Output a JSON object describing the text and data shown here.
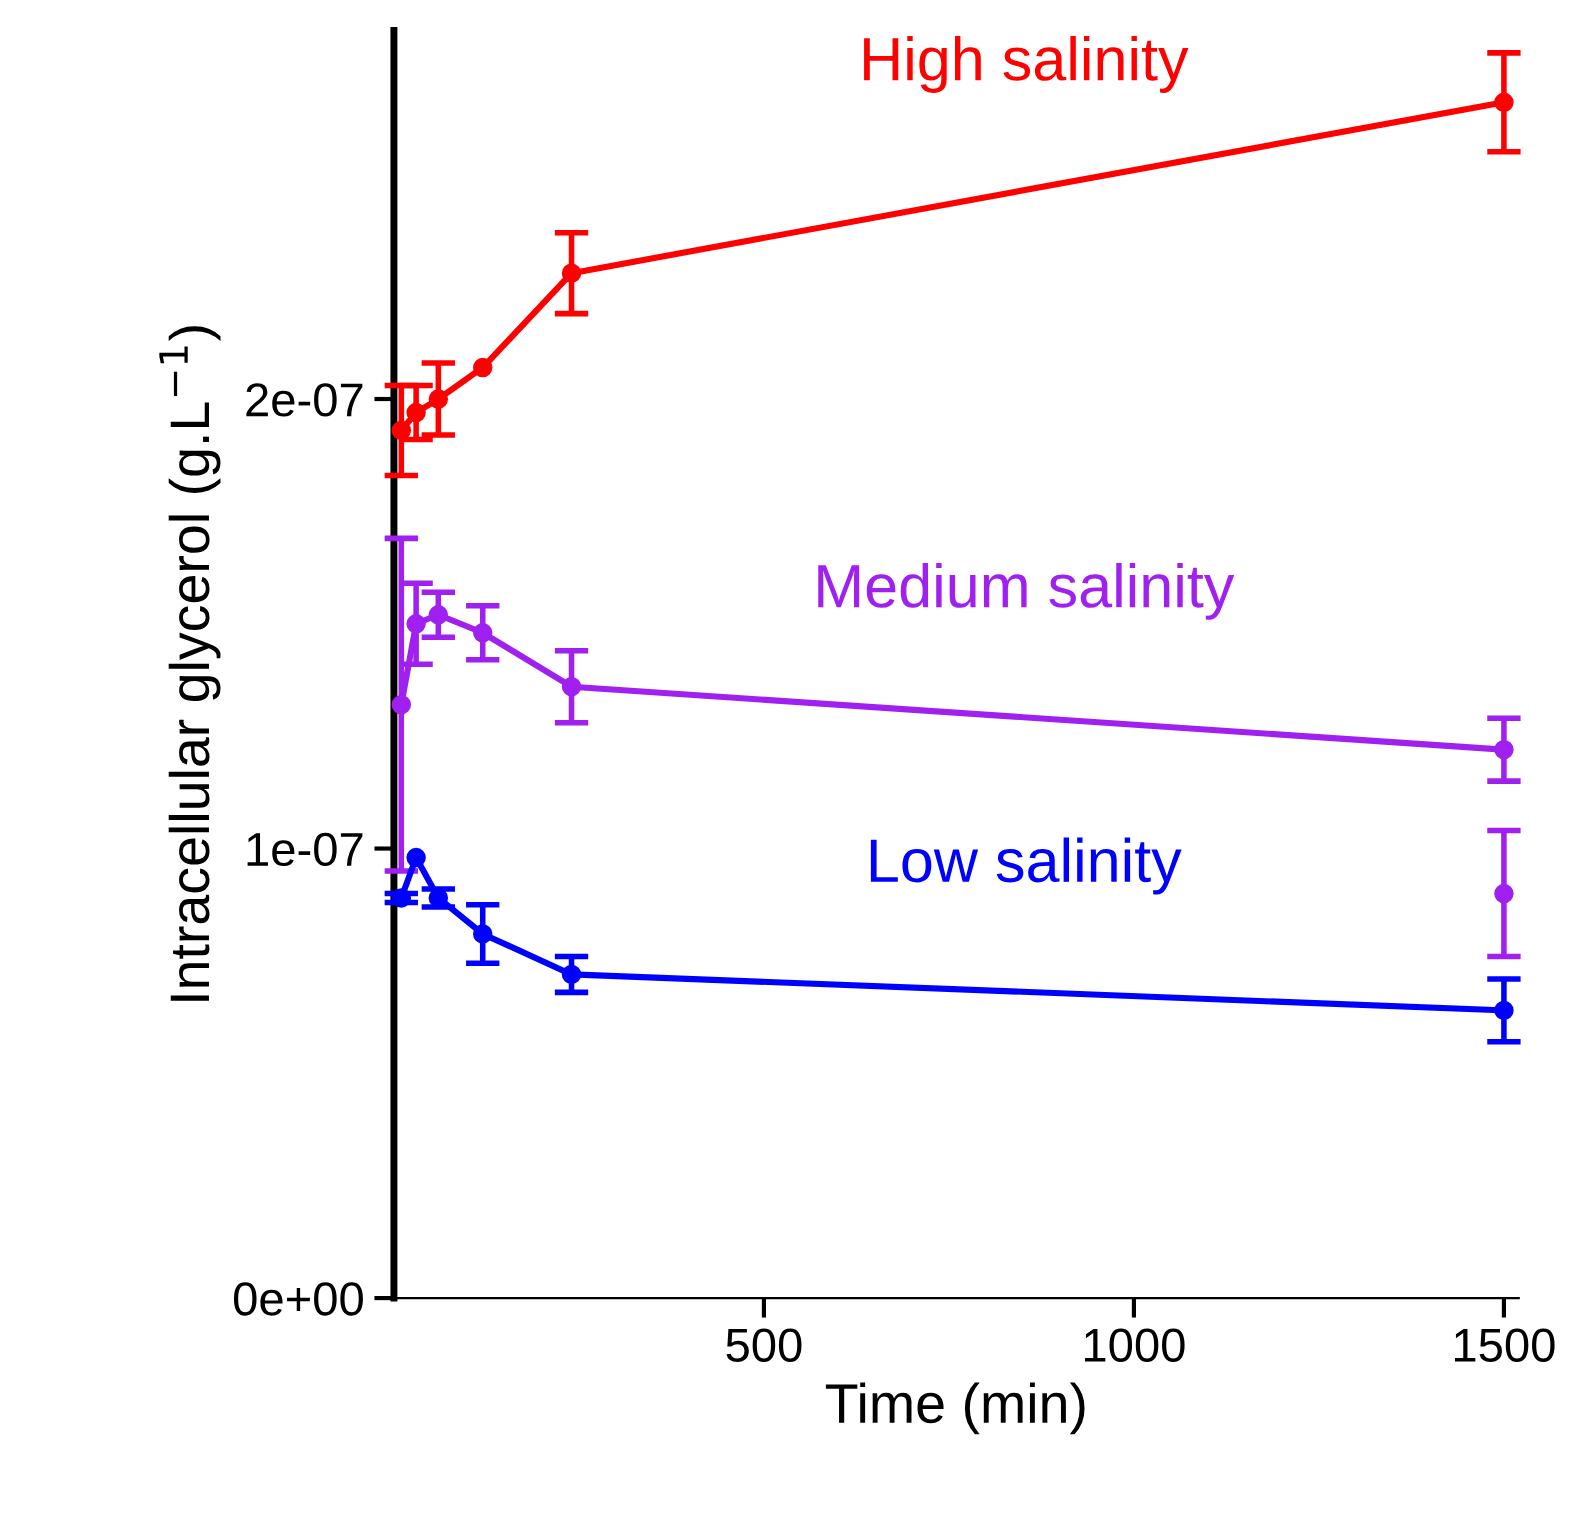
{
  "chart_data": {
    "type": "line",
    "xlabel": "Time (min)",
    "ylabel": "Intracellular glycerol (g.L$^{−1}$)",
    "x": [
      10,
      30,
      60,
      120,
      240,
      1500
    ],
    "series": [
      {
        "name": "High salinity",
        "color": "#ff0000",
        "values": [
          1.93e-07,
          1.97e-07,
          2e-07,
          2.07e-07,
          2.28e-07,
          2.66e-07
        ],
        "errors": [
          1e-08,
          6e-09,
          8e-09,
          null,
          9e-09,
          1.1e-08
        ]
      },
      {
        "name": "Medium salinity",
        "color": "#a020f0",
        "values": [
          1.32e-07,
          1.5e-07,
          1.52e-07,
          1.48e-07,
          1.36e-07,
          1.22e-07
        ],
        "errors": [
          3.7e-08,
          9e-09,
          5e-09,
          6e-09,
          8e-09,
          7e-09
        ]
      },
      {
        "type": "scatter",
        "color": "#a020f0",
        "values": [
          null,
          null,
          null,
          null,
          null,
          9e-08
        ],
        "errors": [
          null,
          null,
          null,
          null,
          null,
          1.4e-08
        ]
      },
      {
        "name": "Low salinity",
        "color": "#0000ff",
        "values": [
          8.9e-08,
          9.8e-08,
          8.9e-08,
          8.1e-08,
          7.2e-08,
          6.4e-08
        ],
        "errors": [
          1e-09,
          null,
          2e-09,
          6.5e-09,
          4e-09,
          7e-09
        ]
      }
    ],
    "xlim": [
      0,
      1520
    ],
    "ylim": [
      0,
      2.82e-07
    ],
    "xticks": [
      500,
      1000,
      1500
    ],
    "yticks": [
      {
        "value": 0,
        "label": "0e+00"
      },
      {
        "value": 1e-07,
        "label": "1e-07"
      },
      {
        "value": 2e-07,
        "label": "2e-07"
      }
    ],
    "marker": "circle",
    "line_style": "solid",
    "grid": false,
    "legend": false
  }
}
